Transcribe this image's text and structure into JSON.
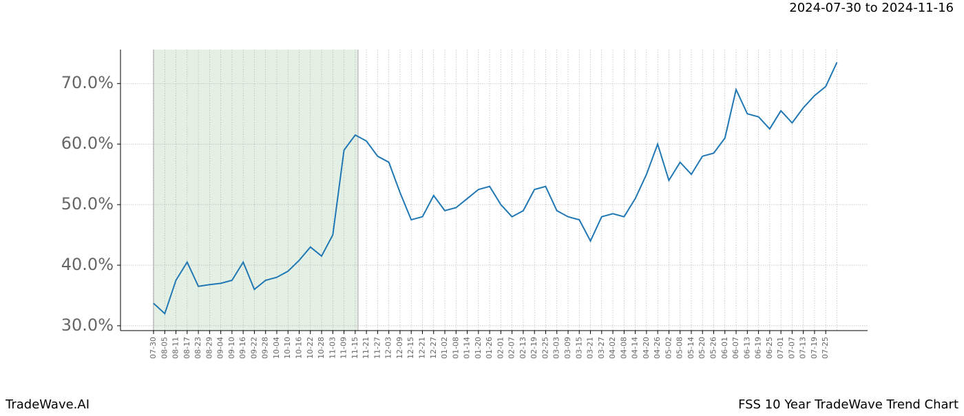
{
  "chart_data": {
    "type": "line",
    "title": "FSS 10 Year TradeWave Trend Chart",
    "subtitle": "2024-07-30 to 2024-11-16",
    "brand": "TradeWave.AI",
    "categories": [
      "07-30",
      "08-05",
      "08-11",
      "08-17",
      "08-23",
      "08-29",
      "09-04",
      "09-10",
      "09-16",
      "09-22",
      "09-28",
      "10-04",
      "10-10",
      "10-16",
      "10-22",
      "10-28",
      "11-03",
      "11-09",
      "11-15",
      "11-21",
      "11-27",
      "12-03",
      "12-09",
      "12-15",
      "12-21",
      "12-27",
      "01-02",
      "01-08",
      "01-14",
      "01-20",
      "01-26",
      "02-01",
      "02-07",
      "02-13",
      "02-19",
      "02-25",
      "03-03",
      "03-09",
      "03-15",
      "03-21",
      "03-27",
      "04-02",
      "04-08",
      "04-14",
      "04-20",
      "04-26",
      "05-02",
      "05-08",
      "05-14",
      "05-20",
      "05-26",
      "06-01",
      "06-07",
      "06-13",
      "06-19",
      "06-25",
      "07-01",
      "07-07",
      "07-13",
      "07-19",
      "07-25",
      null
    ],
    "series": [
      {
        "color": "#1f77b4",
        "values": [
          33.7,
          32.0,
          37.5,
          40.5,
          36.5,
          36.8,
          37.0,
          37.5,
          40.5,
          36.0,
          37.5,
          38.0,
          39.0,
          40.8,
          43.0,
          41.5,
          45.0,
          59.0,
          61.5,
          60.5,
          58.0,
          57.0,
          52.0,
          47.5,
          48.0,
          51.5,
          49.0,
          49.5,
          51.0,
          52.5,
          53.0,
          50.0,
          48.0,
          49.0,
          52.5,
          53.0,
          49.0,
          48.0,
          47.5,
          44.0,
          48.0,
          48.5,
          48.0,
          51.0,
          55.0,
          60.0,
          54.0,
          57.0,
          55.0,
          58.0,
          58.5,
          61.0,
          69.0,
          65.0,
          64.5,
          62.5,
          65.5,
          63.5,
          66.0,
          68.0,
          69.5,
          73.5
        ]
      }
    ],
    "highlight_range": [
      "07-30",
      "11-15"
    ],
    "highlight_color": "#e5f0e5",
    "ylim": [
      29.2,
      75.6
    ],
    "yticks": [
      {
        "value": 30,
        "label": "30.0%"
      },
      {
        "value": 40,
        "label": "40.0%"
      },
      {
        "value": 50,
        "label": "50.0%"
      },
      {
        "value": 60,
        "label": "60.0%"
      },
      {
        "value": 70,
        "label": "70.0%"
      }
    ],
    "grid": true
  }
}
